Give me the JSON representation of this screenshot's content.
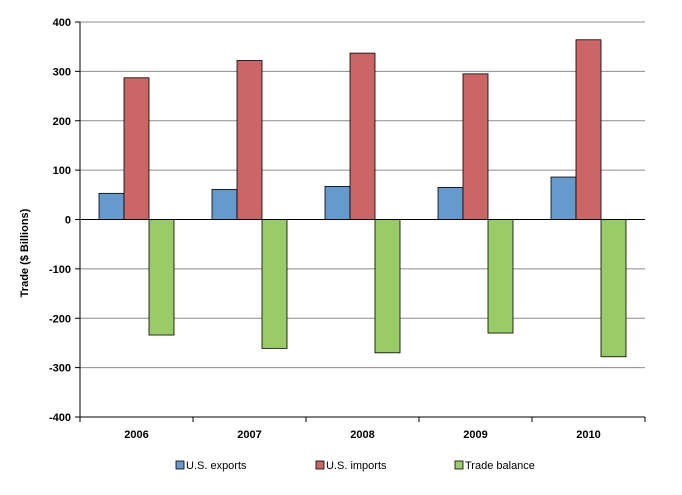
{
  "chart_data": {
    "type": "bar",
    "title": "",
    "xlabel": "",
    "ylabel": "Trade ($ Billions)",
    "ylim": [
      -400,
      400
    ],
    "yticks": [
      -400,
      -300,
      -200,
      -100,
      0,
      100,
      200,
      300,
      400
    ],
    "grid": true,
    "legend_position": "bottom",
    "categories": [
      "2006",
      "2007",
      "2008",
      "2009",
      "2010"
    ],
    "series": [
      {
        "name": "U.S. exports",
        "color": "#6699CC",
        "values": [
          53,
          61,
          67,
          65,
          86
        ]
      },
      {
        "name": "U.S. imports",
        "color": "#CC6666",
        "values": [
          287,
          322,
          337,
          295,
          364
        ]
      },
      {
        "name": "Trade balance",
        "color": "#99CC66",
        "values": [
          -234,
          -261,
          -270,
          -230,
          -278
        ]
      }
    ]
  }
}
